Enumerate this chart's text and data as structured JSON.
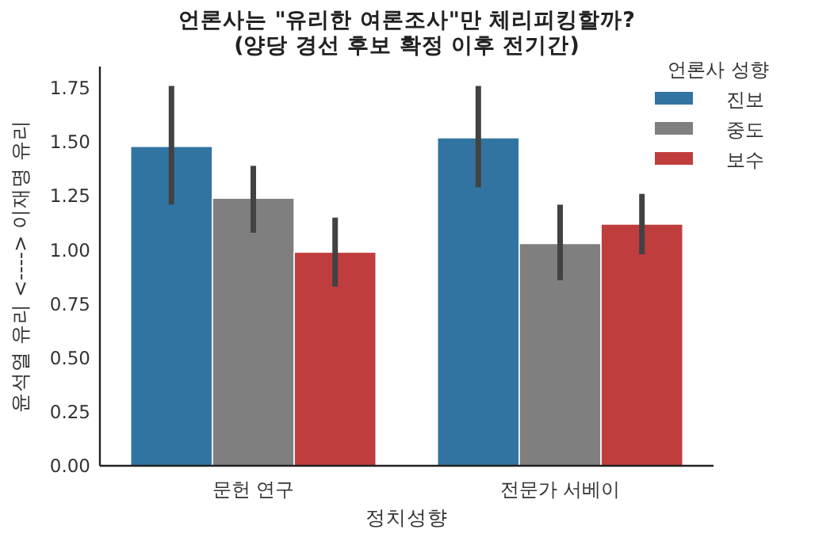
{
  "chart_data": {
    "type": "bar",
    "title": "언론사는 \"유리한 여론조사\"만 체리피킹할까?\n(양당 경선 후보 확정 이후 전기간)",
    "xlabel": "정치성향",
    "ylabel": "윤석열 유리 <----> 이재명 유리",
    "legend_title": "언론사 성향",
    "categories": [
      "문헌 연구",
      "전문가 서베이"
    ],
    "series": [
      {
        "name": "진보",
        "color": "#3274a1",
        "values": [
          1.48,
          1.52
        ],
        "errors": [
          [
            1.21,
            1.76
          ],
          [
            1.29,
            1.76
          ]
        ]
      },
      {
        "name": "중도",
        "color": "#7f7f7f",
        "values": [
          1.24,
          1.03
        ],
        "errors": [
          [
            1.08,
            1.39
          ],
          [
            0.86,
            1.21
          ]
        ]
      },
      {
        "name": "보수",
        "color": "#c03d3e",
        "values": [
          0.99,
          1.12
        ],
        "errors": [
          [
            0.83,
            1.15
          ],
          [
            0.98,
            1.26
          ]
        ]
      }
    ],
    "ylim": [
      0,
      1.85
    ],
    "yticks": [
      {
        "value": 0,
        "label": "0.00"
      },
      {
        "value": 0.25,
        "label": "0.25"
      },
      {
        "value": 0.5,
        "label": "0.50"
      },
      {
        "value": 0.75,
        "label": "0.75"
      },
      {
        "value": 1,
        "label": "1.00"
      },
      {
        "value": 1.25,
        "label": "1.25"
      },
      {
        "value": 1.5,
        "label": "1.50"
      },
      {
        "value": 1.75,
        "label": "1.75"
      }
    ],
    "grid": false,
    "legend": "right"
  }
}
